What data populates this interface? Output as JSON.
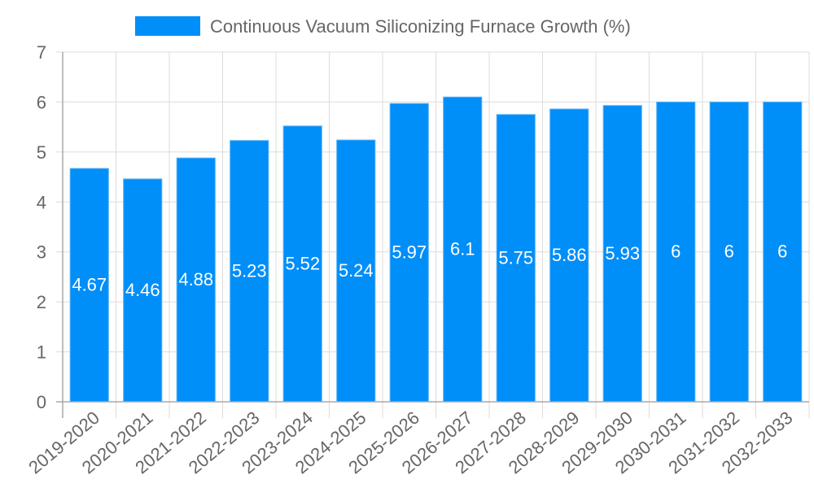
{
  "legend": {
    "label": "Continuous Vacuum Siliconizing Furnace Growth (%)",
    "color": "#008ef9"
  },
  "colors": {
    "bar": "#008ef9",
    "bar_border": "#5bb3f5",
    "grid": "#dcdcdc",
    "axis": "#a9a9a9",
    "tick_text": "#666666",
    "data_label": "#ffffff"
  },
  "chart_data": {
    "type": "bar",
    "title": "",
    "xlabel": "",
    "ylabel": "",
    "ylim": [
      0,
      7
    ],
    "yticks": [
      0,
      1,
      2,
      3,
      4,
      5,
      6,
      7
    ],
    "grid": true,
    "legend_position": "top",
    "categories": [
      "2019-2020",
      "2020-2021",
      "2021-2022",
      "2022-2023",
      "2023-2024",
      "2024-2025",
      "2025-2026",
      "2026-2027",
      "2027-2028",
      "2028-2029",
      "2029-2030",
      "2030-2031",
      "2031-2032",
      "2032-2033"
    ],
    "series": [
      {
        "name": "Continuous Vacuum Siliconizing Furnace Growth (%)",
        "values": [
          4.67,
          4.46,
          4.88,
          5.23,
          5.52,
          5.24,
          5.97,
          6.1,
          5.75,
          5.86,
          5.93,
          6,
          6,
          6
        ]
      }
    ]
  }
}
